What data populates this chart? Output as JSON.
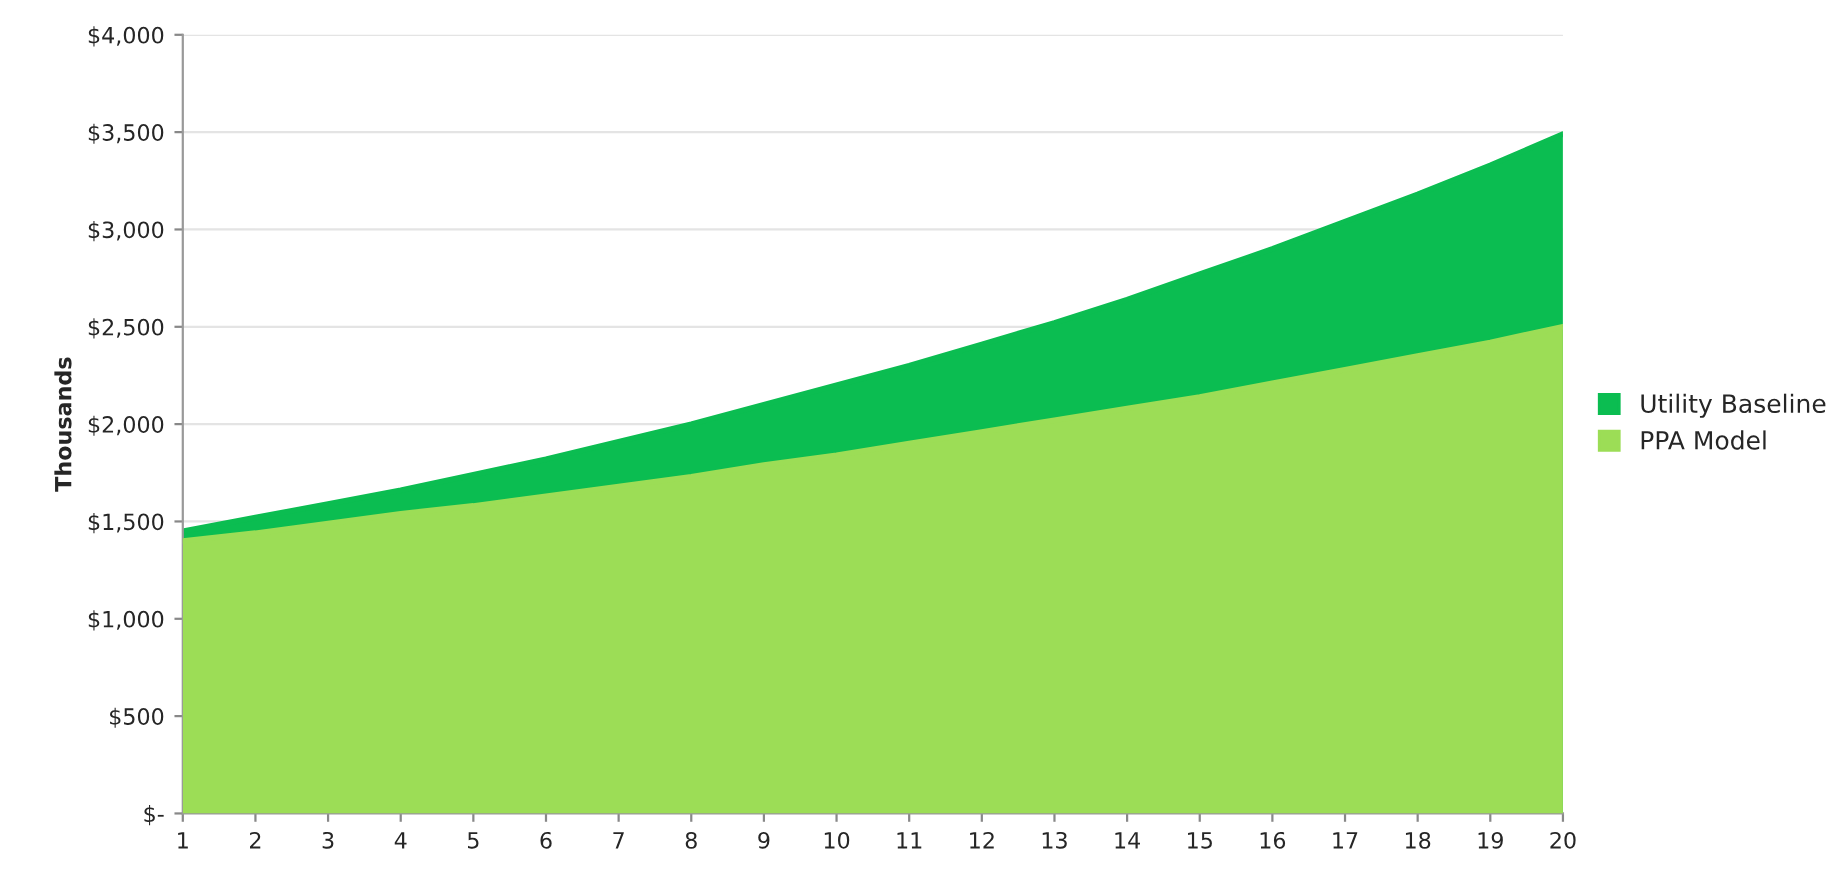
{
  "chart_data": {
    "type": "area",
    "ylabel": "Thousands",
    "categories": [
      "1",
      "2",
      "3",
      "4",
      "5",
      "6",
      "7",
      "8",
      "9",
      "10",
      "11",
      "12",
      "13",
      "14",
      "15",
      "16",
      "17",
      "18",
      "19",
      "20"
    ],
    "series": [
      {
        "name": "Utility Baseline",
        "color": "#0bbd51",
        "values": [
          1450,
          1520,
          1590,
          1660,
          1740,
          1820,
          1910,
          2000,
          2100,
          2200,
          2300,
          2410,
          2520,
          2640,
          2770,
          2900,
          3040,
          3180,
          3330,
          3490
        ]
      },
      {
        "name": "PPA Model",
        "color": "#9cdd56",
        "values": [
          1400,
          1440,
          1490,
          1540,
          1580,
          1630,
          1680,
          1730,
          1790,
          1840,
          1900,
          1960,
          2020,
          2080,
          2140,
          2210,
          2280,
          2350,
          2420,
          2500
        ]
      }
    ],
    "ylim": [
      0,
      4000
    ],
    "yticks": [
      {
        "value": 0,
        "label": "$-"
      },
      {
        "value": 500,
        "label": "$500"
      },
      {
        "value": 1000,
        "label": "$1,000"
      },
      {
        "value": 1500,
        "label": "$1,500"
      },
      {
        "value": 2000,
        "label": "$2,000"
      },
      {
        "value": 2500,
        "label": "$2,500"
      },
      {
        "value": 3000,
        "label": "$3,000"
      },
      {
        "value": 3500,
        "label": "$3,500"
      },
      {
        "value": 4000,
        "label": "$4,000"
      }
    ],
    "grid": "y",
    "legend": "right"
  }
}
